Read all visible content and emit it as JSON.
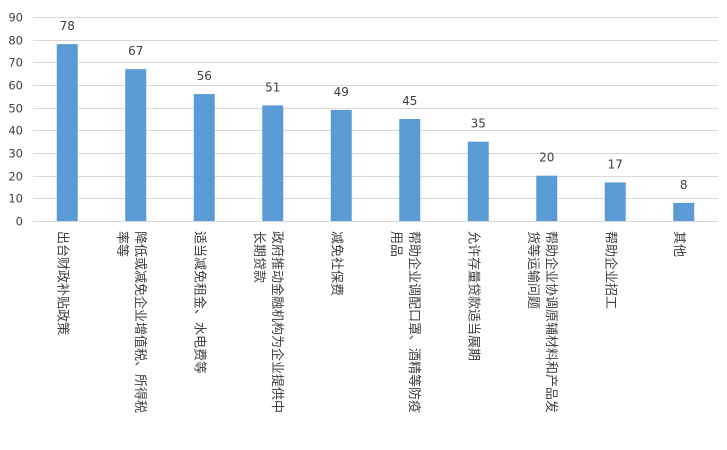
{
  "chart_data": {
    "type": "bar",
    "categories": [
      "出台财政补贴政策",
      "降低或减免企业增值税、所得税率等",
      "适当减免租金、水电费等",
      "政府推动金融机构为企业提供中长期贷款",
      "减免社保费",
      "帮助企业调配口罩、酒精等防疫用品",
      "允许存量贷款适当展期",
      "帮助企业协调原辅材料和产品发货等运输问题",
      "帮助企业招工",
      "其他"
    ],
    "category_lines": [
      [
        "出台财政补贴政策"
      ],
      [
        "降低或减免企业增值税、所得税",
        "率等"
      ],
      [
        "适当减免租金、水电费等"
      ],
      [
        "政府推动金融机构为企业提供中",
        "长期贷款"
      ],
      [
        "减免社保费"
      ],
      [
        "帮助企业调配口罩、酒精等防疫",
        "用品"
      ],
      [
        "允许存量贷款适当展期"
      ],
      [
        "帮助企业协调原辅材料和产品发",
        "货等运输问题"
      ],
      [
        "帮助企业招工"
      ],
      [
        "其他"
      ]
    ],
    "values": [
      78,
      67,
      56,
      51,
      49,
      45,
      35,
      20,
      17,
      8
    ],
    "value_labels": [
      "78",
      "67",
      "56",
      "51",
      "49",
      "45",
      "35",
      "20",
      "17",
      "8"
    ],
    "y_ticks": [
      "0",
      "10",
      "20",
      "30",
      "40",
      "50",
      "60",
      "70",
      "80",
      "90"
    ],
    "ylim": [
      0,
      90
    ],
    "grid": true,
    "legend": "none",
    "bar_color": "#5b9bd5",
    "title": "",
    "xlabel": "",
    "ylabel": ""
  }
}
